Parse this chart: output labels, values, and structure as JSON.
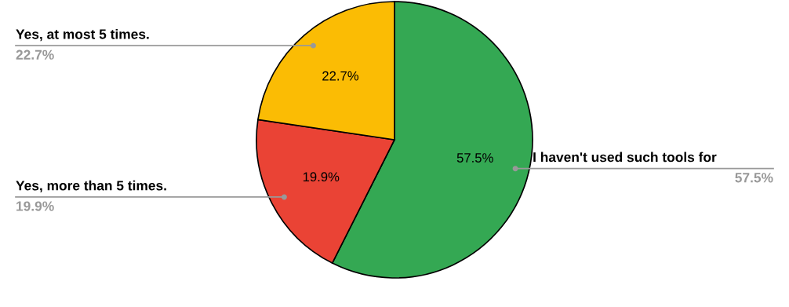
{
  "chart_data": {
    "type": "pie",
    "categories": [
      "I haven't used such tools for",
      "Yes, more than 5 times.",
      "Yes, at most 5 times."
    ],
    "values": [
      57.5,
      19.9,
      22.7
    ],
    "value_labels": [
      "57.5%",
      "19.9%",
      "22.7%"
    ],
    "colors": [
      "#34a853",
      "#ea4335",
      "#fbbc04"
    ],
    "legend": false
  }
}
